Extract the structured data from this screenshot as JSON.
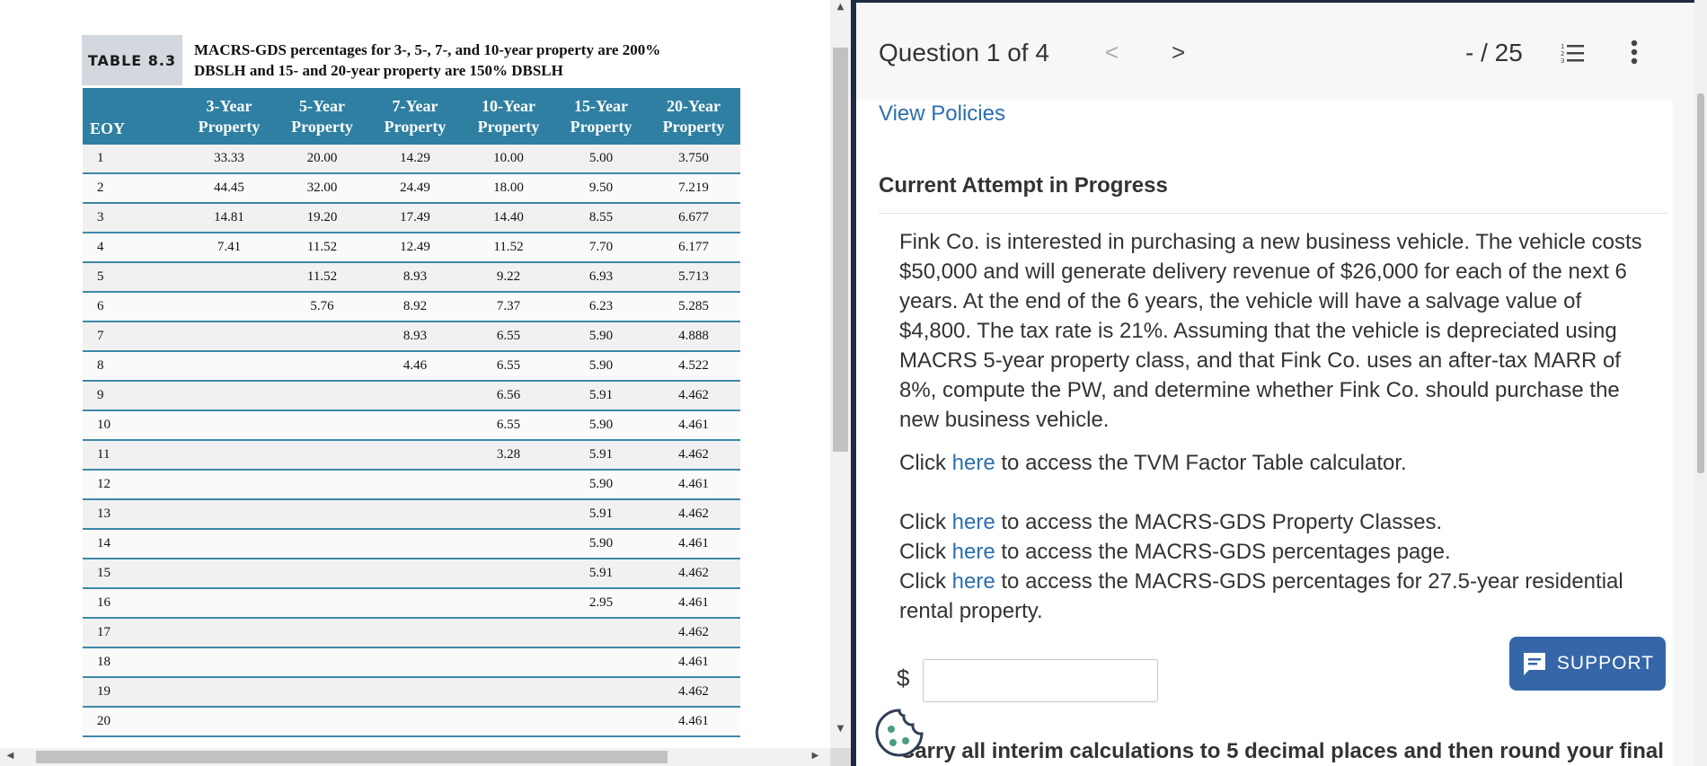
{
  "table": {
    "tag": "TABLE 8.3",
    "title_line1": "MACRS-GDS percentages for 3-, 5-, 7-, and 10-year property are 200%",
    "title_line2": "DBSLH and 15- and 20-year property are 150% DBSLH",
    "headers": [
      {
        "l1": "",
        "l2": "EOY"
      },
      {
        "l1": "3-Year",
        "l2": "Property"
      },
      {
        "l1": "5-Year",
        "l2": "Property"
      },
      {
        "l1": "7-Year",
        "l2": "Property"
      },
      {
        "l1": "10-Year",
        "l2": "Property"
      },
      {
        "l1": "15-Year",
        "l2": "Property"
      },
      {
        "l1": "20-Year",
        "l2": "Property"
      }
    ],
    "rows": [
      [
        "1",
        "33.33",
        "20.00",
        "14.29",
        "10.00",
        "5.00",
        "3.750"
      ],
      [
        "2",
        "44.45",
        "32.00",
        "24.49",
        "18.00",
        "9.50",
        "7.219"
      ],
      [
        "3",
        "14.81",
        "19.20",
        "17.49",
        "14.40",
        "8.55",
        "6.677"
      ],
      [
        "4",
        "7.41",
        "11.52",
        "12.49",
        "11.52",
        "7.70",
        "6.177"
      ],
      [
        "5",
        "",
        "11.52",
        "8.93",
        "9.22",
        "6.93",
        "5.713"
      ],
      [
        "6",
        "",
        "5.76",
        "8.92",
        "7.37",
        "6.23",
        "5.285"
      ],
      [
        "7",
        "",
        "",
        "8.93",
        "6.55",
        "5.90",
        "4.888"
      ],
      [
        "8",
        "",
        "",
        "4.46",
        "6.55",
        "5.90",
        "4.522"
      ],
      [
        "9",
        "",
        "",
        "",
        "6.56",
        "5.91",
        "4.462"
      ],
      [
        "10",
        "",
        "",
        "",
        "6.55",
        "5.90",
        "4.461"
      ],
      [
        "11",
        "",
        "",
        "",
        "3.28",
        "5.91",
        "4.462"
      ],
      [
        "12",
        "",
        "",
        "",
        "",
        "5.90",
        "4.461"
      ],
      [
        "13",
        "",
        "",
        "",
        "",
        "5.91",
        "4.462"
      ],
      [
        "14",
        "",
        "",
        "",
        "",
        "5.90",
        "4.461"
      ],
      [
        "15",
        "",
        "",
        "",
        "",
        "5.91",
        "4.462"
      ],
      [
        "16",
        "",
        "",
        "",
        "",
        "2.95",
        "4.461"
      ],
      [
        "17",
        "",
        "",
        "",
        "",
        "",
        "4.462"
      ],
      [
        "18",
        "",
        "",
        "",
        "",
        "",
        "4.461"
      ],
      [
        "19",
        "",
        "",
        "",
        "",
        "",
        "4.462"
      ],
      [
        "20",
        "",
        "",
        "",
        "",
        "",
        "4.461"
      ]
    ]
  },
  "header": {
    "question_counter": "Question 1 of 4",
    "prev_icon": "<",
    "next_icon": ">",
    "score": "- / 25"
  },
  "content": {
    "view_policies": "View Policies",
    "attempt_heading": "Current Attempt in Progress",
    "problem_text": "Fink Co. is interested in purchasing a new business vehicle. The vehicle costs $50,000 and will generate delivery revenue of $26,000 for each of the next 6 years. At the end of the 6 years, the vehicle will have a salvage value of $4,800. The tax rate is 21%. Assuming that the vehicle is depreciated using MACRS 5-year property class, and that Fink Co. uses an after-tax MARR of 8%, compute the PW, and determine whether Fink Co. should purchase the new business vehicle.",
    "click_word": "Click",
    "here_word": "here",
    "tvm_suffix": "to access the TVM Factor Table calculator.",
    "classes_suffix": "to access the MACRS-GDS Property Classes.",
    "percentages_suffix": "to access the MACRS-GDS percentages page.",
    "residential_suffix_1": "to access the MACRS-GDS percentages for 27.5-year residential",
    "residential_suffix_2": "rental property.",
    "currency_symbol": "$",
    "answer_value": "",
    "bottom_note": "Carry all interim calculations to 5 decimal places and then round your final"
  },
  "support": {
    "label": "SUPPORT"
  },
  "colors": {
    "table_header": "#2e7fa1",
    "link": "#2b6eb0",
    "support": "#3566a8",
    "divider": "#1f2a44",
    "cookie": "#4a9e7e"
  },
  "icons": {
    "list": "numbered-list-icon",
    "more": "vertical-ellipsis-icon",
    "support": "chat-icon",
    "cookie": "cookie-icon"
  }
}
